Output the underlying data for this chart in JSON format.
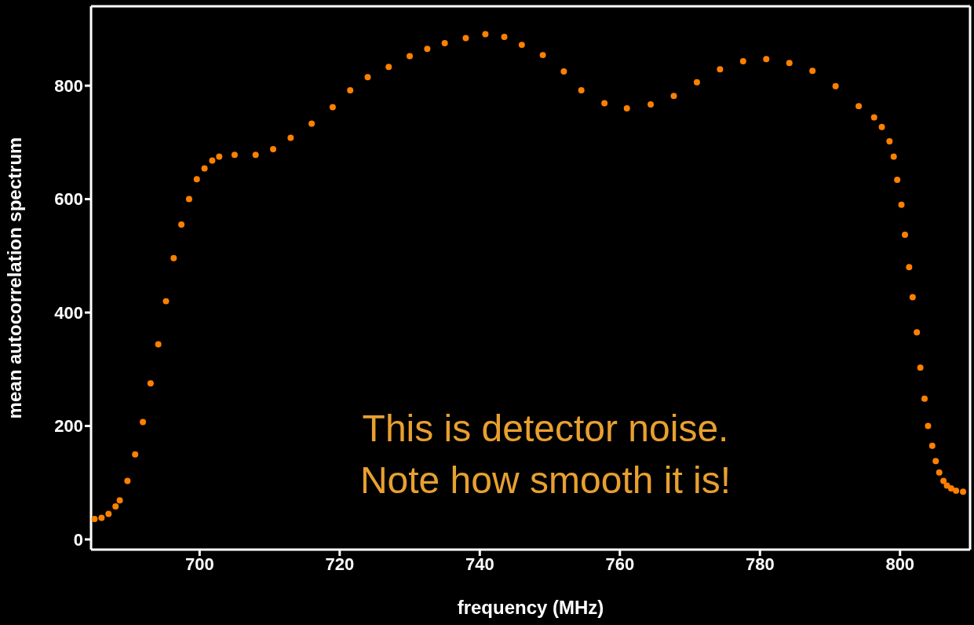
{
  "chart_data": {
    "type": "scatter",
    "xlabel": "frequency (MHz)",
    "ylabel": "mean autocorrelation spectrum",
    "xlim": [
      684.5,
      810
    ],
    "ylim": [
      -18,
      940
    ],
    "xticks": [
      700,
      720,
      740,
      760,
      780,
      800
    ],
    "yticks": [
      0,
      200,
      400,
      600,
      800
    ],
    "marker": "circle",
    "annotations": [
      "This is detector noise.",
      "Note how smooth it is!"
    ],
    "series": [
      {
        "color": "#ff8000",
        "x": [
          685,
          686,
          687,
          688,
          688.6,
          689.7,
          690.8,
          691.9,
          693,
          694.1,
          695.2,
          696.3,
          697.4,
          698.5,
          699.6,
          700.7,
          701.8,
          702.8,
          705,
          708,
          710.5,
          713,
          716,
          719,
          721.5,
          724,
          727,
          730,
          732.5,
          735,
          738,
          740.8,
          743.5,
          746,
          749,
          752,
          754.5,
          757.8,
          761,
          764.4,
          767.7,
          771,
          774.3,
          777.6,
          780.9,
          784.2,
          787.5,
          790.8,
          794.1,
          796.3,
          797.4,
          798.5,
          799.1,
          799.6,
          800.2,
          800.7,
          801.3,
          801.8,
          802.4,
          802.9,
          803.5,
          804,
          804.6,
          805.1,
          805.6,
          806.2,
          806.7,
          807.3,
          808,
          809
        ],
        "values": [
          36,
          38,
          45,
          58,
          69,
          103,
          150,
          207,
          275,
          344,
          420,
          496,
          555,
          600,
          635,
          654,
          668,
          675,
          678,
          678,
          688,
          708,
          733,
          762,
          792,
          815,
          833,
          852,
          865,
          875,
          884,
          891,
          886,
          872,
          854,
          825,
          792,
          769,
          760,
          767,
          782,
          806,
          829,
          843,
          847,
          840,
          826,
          799,
          764,
          744,
          727,
          702,
          675,
          634,
          590,
          537,
          480,
          427,
          365,
          303,
          248,
          200,
          165,
          138,
          118,
          103,
          95,
          90,
          86,
          84
        ]
      }
    ]
  }
}
